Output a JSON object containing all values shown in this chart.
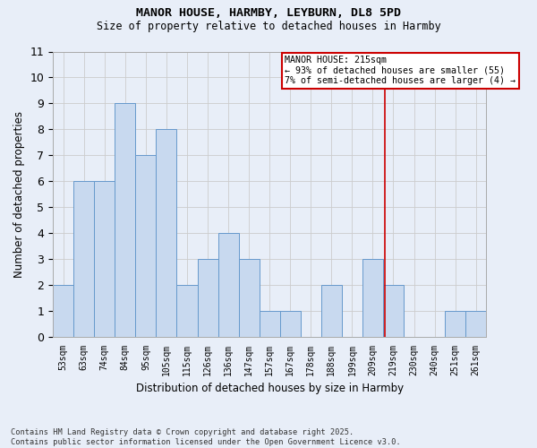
{
  "title1": "MANOR HOUSE, HARMBY, LEYBURN, DL8 5PD",
  "title2": "Size of property relative to detached houses in Harmby",
  "xlabel": "Distribution of detached houses by size in Harmby",
  "ylabel": "Number of detached properties",
  "categories": [
    "53sqm",
    "63sqm",
    "74sqm",
    "84sqm",
    "95sqm",
    "105sqm",
    "115sqm",
    "126sqm",
    "136sqm",
    "147sqm",
    "157sqm",
    "167sqm",
    "178sqm",
    "188sqm",
    "199sqm",
    "209sqm",
    "219sqm",
    "230sqm",
    "240sqm",
    "251sqm",
    "261sqm"
  ],
  "values": [
    2,
    6,
    6,
    9,
    7,
    8,
    2,
    3,
    4,
    3,
    1,
    1,
    0,
    2,
    0,
    3,
    2,
    0,
    0,
    1,
    1
  ],
  "bar_color": "#c8d9ef",
  "bar_edge_color": "#6699cc",
  "grid_color": "#cccccc",
  "bg_color": "#e8eef8",
  "annotation_text": "MANOR HOUSE: 215sqm\n← 93% of detached houses are smaller (55)\n7% of semi-detached houses are larger (4) →",
  "annotation_box_color": "#ffffff",
  "annotation_border_color": "#cc0000",
  "vline_color": "#cc0000",
  "ylim": [
    0,
    11
  ],
  "yticks": [
    0,
    1,
    2,
    3,
    4,
    5,
    6,
    7,
    8,
    9,
    10,
    11
  ],
  "footnote": "Contains HM Land Registry data © Crown copyright and database right 2025.\nContains public sector information licensed under the Open Government Licence v3.0."
}
